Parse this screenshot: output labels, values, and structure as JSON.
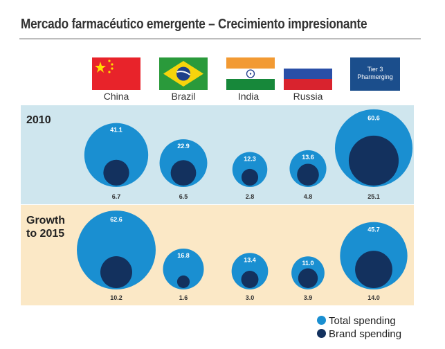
{
  "chart_data": {
    "type": "bubble",
    "title": "Mercado farmacéutico emergente – Crecimiento impresionante",
    "categories": [
      "China",
      "Brazil",
      "India",
      "Russia"
    ],
    "extra_category": "Tier 3 Pharmerging",
    "panels": [
      {
        "label_line1": "2010",
        "label_line2": "",
        "total_spending": [
          41.1,
          22.9,
          12.3,
          13.6,
          60.6
        ],
        "brand_spending": [
          6.7,
          6.5,
          2.8,
          4.8,
          25.1
        ]
      },
      {
        "label_line1": "Growth",
        "label_line2": "to 2015",
        "total_spending": [
          62.6,
          16.8,
          13.4,
          11.0,
          45.7
        ],
        "brand_spending": [
          10.2,
          1.6,
          3.0,
          3.9,
          14.0
        ]
      }
    ],
    "legend": {
      "total_label": "Total spending",
      "brand_label": "Brand spending"
    }
  },
  "header": {
    "tier_line1": "Tier 3",
    "tier_line2": "Pharmerging"
  },
  "colors": {
    "total": "#1a8fd1",
    "brand": "#13315e",
    "panel_2010": "#cfe6ee",
    "panel_2015": "#fbe8c6"
  }
}
